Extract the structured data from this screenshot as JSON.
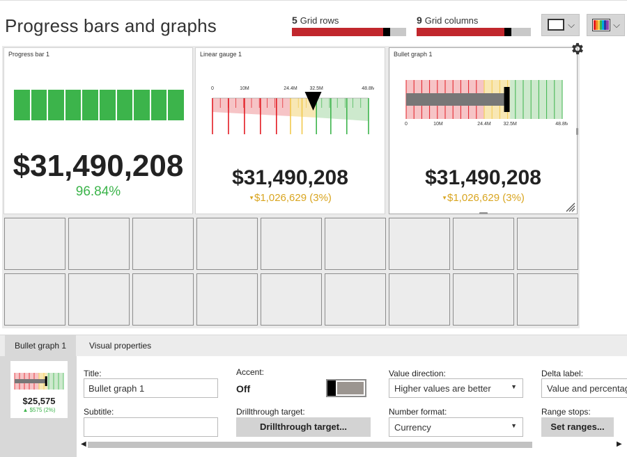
{
  "page": {
    "title": "Progress bars and graphs"
  },
  "grid_rows": {
    "count": "5",
    "label": "Grid rows",
    "value": 0.85
  },
  "grid_columns": {
    "count": "9",
    "label": "Grid columns",
    "value": 0.82
  },
  "header_buttons": {
    "layout": "rectangle-icon",
    "theme": "rainbow-palette-icon"
  },
  "tiles": [
    {
      "title": "Progress bar 1",
      "value": "$31,490,208",
      "percent": "96.84%",
      "segments": 10,
      "filled": 10,
      "color": "#3cb44b"
    },
    {
      "title": "Linear gauge 1",
      "value": "$31,490,208",
      "delta": "$1,026,629 (3%)",
      "ticks": [
        "0",
        "10M",
        "24.4M",
        "32.5M",
        "48.8M"
      ]
    },
    {
      "title": "Bullet graph 1",
      "value": "$31,490,208",
      "delta": "$1,026,629 (3%)",
      "ticks": [
        "0",
        "10M",
        "24.4M",
        "32.5M",
        "48.8M"
      ]
    }
  ],
  "colors": {
    "red": "#e31b23",
    "red_soft": "#f6c4c6",
    "yellow": "#f2c94c",
    "yellow_soft": "#f8e7b4",
    "green": "#3cb44b",
    "green_soft": "#cde9cd",
    "delta_down": "#d9a520",
    "delta_up": "#3cb44b"
  },
  "panel": {
    "tabs": [
      "Bullet graph 1",
      "Visual properties"
    ],
    "preview": {
      "value": "$25,575",
      "delta": "$575 (2%)"
    },
    "title_label": "Title:",
    "title_value": "Bullet graph 1",
    "subtitle_label": "Subtitle:",
    "subtitle_value": "",
    "accent_label": "Accent:",
    "accent_value": "Off",
    "drill_label": "Drillthrough target:",
    "drill_button": "Drillthrough target...",
    "value_direction_label": "Value direction:",
    "value_direction_value": "Higher values are better",
    "number_format_label": "Number format:",
    "number_format_value": "Currency",
    "delta_label_label": "Delta label:",
    "delta_label_value": "Value and percentage",
    "range_stops_label": "Range stops:",
    "range_stops_button": "Set ranges..."
  }
}
